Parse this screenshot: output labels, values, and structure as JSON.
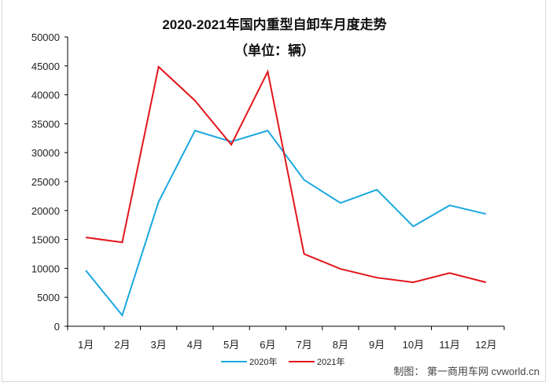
{
  "title": "2020-2021年国内重型自卸车月度走势",
  "subtitle": "（单位：辆）",
  "source": "制图：  第一商用车网 cvworld.cn",
  "colors": {
    "series_2020": "#1aa8e0",
    "series_2021": "#e3151c",
    "axis": "#000000"
  },
  "chart_data": {
    "type": "line",
    "title": "2020-2021年国内重型自卸车月度走势",
    "subtitle": "（单位：辆）",
    "xlabel": "",
    "ylabel": "",
    "ylim": [
      0,
      50000
    ],
    "yticks": [
      0,
      5000,
      10000,
      15000,
      20000,
      25000,
      30000,
      35000,
      40000,
      45000,
      50000
    ],
    "grid": false,
    "legend_position": "bottom",
    "categories": [
      "1月",
      "2月",
      "3月",
      "4月",
      "5月",
      "6月",
      "7月",
      "8月",
      "9月",
      "10月",
      "11月",
      "12月"
    ],
    "series": [
      {
        "name": "2020年",
        "color": "#1aa8e0",
        "values": [
          9650,
          1900,
          21500,
          33800,
          31900,
          33800,
          25300,
          21300,
          23600,
          17250,
          20900,
          19400
        ]
      },
      {
        "name": "2021年",
        "color": "#e3151c",
        "values": [
          15350,
          14500,
          44840,
          39000,
          31390,
          44000,
          12500,
          9900,
          8400,
          7600,
          9200,
          7600
        ]
      }
    ]
  }
}
